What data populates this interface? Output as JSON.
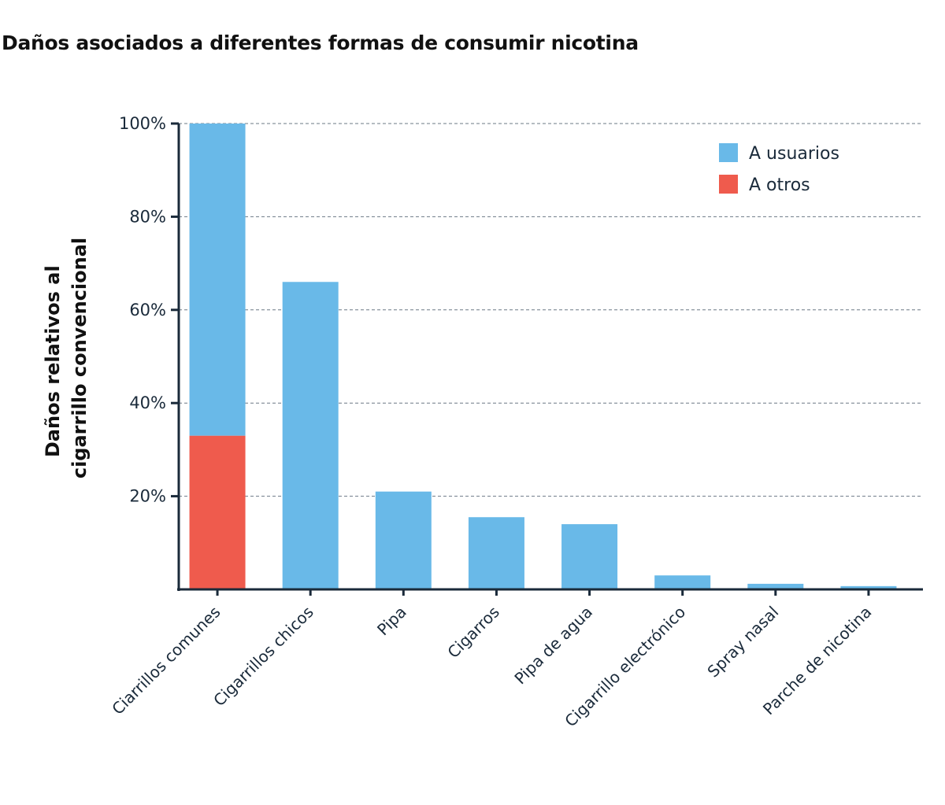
{
  "chart_data": {
    "type": "bar",
    "stacked": true,
    "title": "Daños asociados a diferentes formas de consumir nicotina",
    "xlabel": "",
    "ylabel": [
      "Daños relativos al",
      "cigarrillo convencional"
    ],
    "ylim": [
      0,
      100
    ],
    "yticks": [
      20,
      40,
      60,
      80,
      100
    ],
    "ytick_labels": [
      "20%",
      "40%",
      "60%",
      "80%",
      "100%"
    ],
    "grid": true,
    "legend_position": "top-right",
    "categories": [
      "Ciarrillos comunes",
      "Cigarrillos chicos",
      "Pipa",
      "Cigarros",
      "Pipa de agua",
      "Cigarrillo electrónico",
      "Spray nasal",
      "Parche de nicotina"
    ],
    "series": [
      {
        "name": "A otros",
        "color": "#ef5b4d",
        "values": [
          33,
          0,
          0,
          0,
          0,
          0,
          0,
          0
        ]
      },
      {
        "name": "A usuarios",
        "color": "#69b9e8",
        "values": [
          67,
          66,
          21,
          15.5,
          14,
          3,
          1.2,
          0.7
        ]
      }
    ],
    "legend": [
      {
        "name": "A usuarios",
        "color": "#69b9e8"
      },
      {
        "name": "A otros",
        "color": "#ef5b4d"
      }
    ]
  }
}
